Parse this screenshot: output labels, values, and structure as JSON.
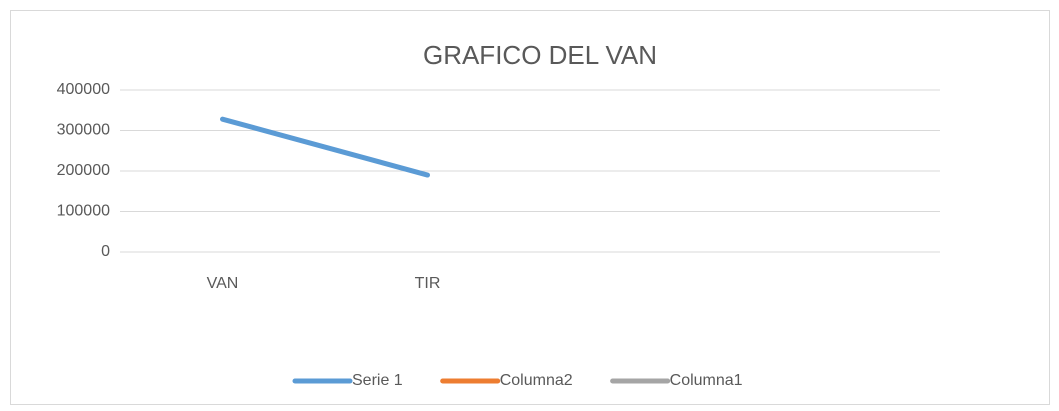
{
  "chart_data": {
    "type": "line",
    "title": "GRAFICO DEL VAN",
    "categories": [
      "VAN",
      "TIR",
      null,
      null
    ],
    "series": [
      {
        "name": "Serie 1",
        "color": "#5b9bd5",
        "values": [
          328000,
          190000,
          null,
          null
        ]
      },
      {
        "name": "Columna2",
        "color": "#ed7d31",
        "values": [
          null,
          null,
          null,
          null
        ]
      },
      {
        "name": "Columna1",
        "color": "#a5a5a5",
        "values": [
          null,
          null,
          null,
          null
        ]
      }
    ],
    "ylim": [
      0,
      400000
    ],
    "yticks": [
      0,
      100000,
      200000,
      300000,
      400000
    ],
    "grid": true
  }
}
